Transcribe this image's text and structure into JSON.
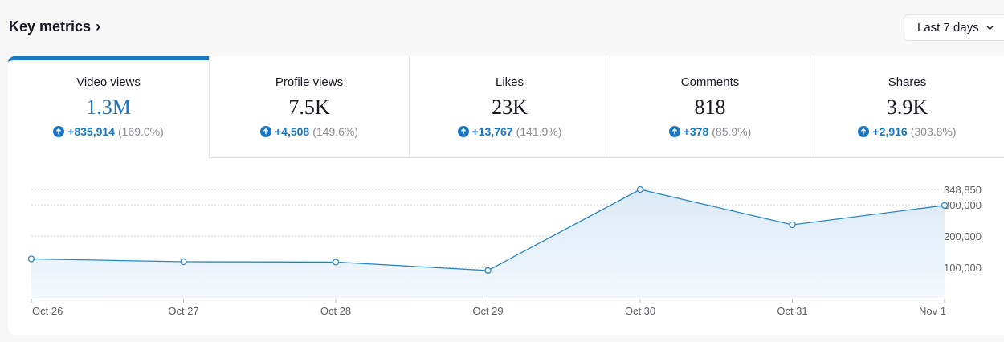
{
  "header": {
    "title": "Key metrics",
    "title_chevron": "›",
    "range_label": "Last 7 days"
  },
  "tabs": [
    {
      "label": "Video views",
      "value": "1.3M",
      "delta_abs": "+835,914",
      "delta_pct": "(169.0%)",
      "active": true
    },
    {
      "label": "Profile views",
      "value": "7.5K",
      "delta_abs": "+4,508",
      "delta_pct": "(149.6%)",
      "active": false
    },
    {
      "label": "Likes",
      "value": "23K",
      "delta_abs": "+13,767",
      "delta_pct": "(141.9%)",
      "active": false
    },
    {
      "label": "Comments",
      "value": "818",
      "delta_abs": "+378",
      "delta_pct": "(85.9%)",
      "active": false
    },
    {
      "label": "Shares",
      "value": "3.9K",
      "delta_abs": "+2,916",
      "delta_pct": "(303.8%)",
      "active": false
    }
  ],
  "colors": {
    "accent": "#1a76c2",
    "line": "#2b86c5",
    "area": "#e8f2fb",
    "grid": "#cfcfcf",
    "axis_text": "#5e5e66"
  },
  "chart_data": {
    "type": "area",
    "title": "Video views",
    "categories": [
      "Oct 26",
      "Oct 27",
      "Oct 28",
      "Oct 29",
      "Oct 30",
      "Oct 31",
      "Nov 1"
    ],
    "series": [
      {
        "name": "Video views",
        "values": [
          127000,
          118000,
          117000,
          90000,
          348850,
          236000,
          298000
        ]
      }
    ],
    "y_ticks": [
      100000,
      200000,
      300000,
      348850
    ],
    "y_tick_labels": [
      "100,000",
      "200,000",
      "300,000",
      "348,850"
    ],
    "ylim": [
      0,
      348850
    ],
    "grid": true
  }
}
